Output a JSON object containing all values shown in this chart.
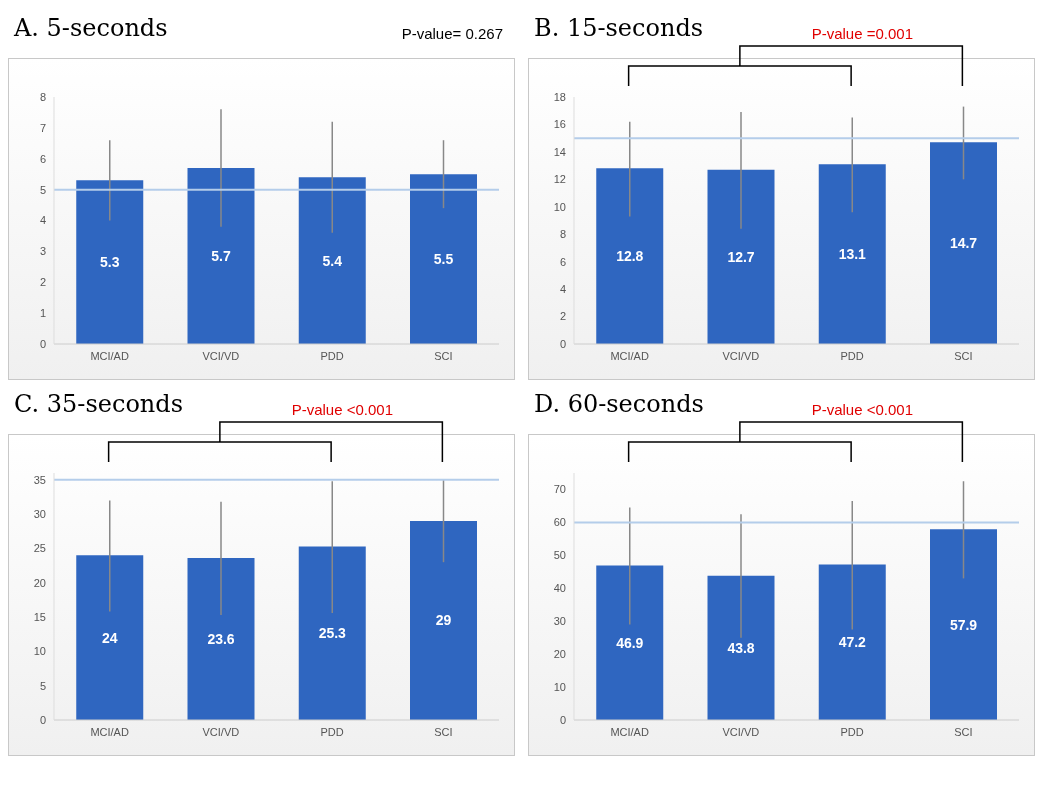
{
  "chart_data": [
    {
      "type": "bar",
      "title": "A. 5-seconds",
      "annotations": [
        "P-value= 0.267"
      ],
      "categories": [
        "MCI/AD",
        "VCI/VD",
        "PDD",
        "SCI"
      ],
      "values": [
        5.3,
        5.7,
        5.4,
        5.5
      ],
      "color": "#2f66c0",
      "data_labels": true,
      "errors": [
        [
          4.0,
          6.6
        ],
        [
          3.8,
          7.6
        ],
        [
          3.6,
          7.2
        ],
        [
          4.4,
          6.6
        ]
      ],
      "ylim": [
        0,
        8
      ],
      "yticks": [
        0,
        1,
        2,
        3,
        4,
        5,
        6,
        7,
        8
      ],
      "ref_lines": [
        {
          "axis": "y",
          "value": 5,
          "color": "#b4cdea"
        }
      ],
      "grid": false
    },
    {
      "type": "bar",
      "title": "B. 15-seconds",
      "annotations": [
        "P-value =0.001"
      ],
      "categories": [
        "MCI/AD",
        "VCI/VD",
        "PDD",
        "SCI"
      ],
      "values": [
        12.8,
        12.7,
        13.1,
        14.7
      ],
      "color": "#2f66c0",
      "data_labels": true,
      "errors": [
        [
          9.3,
          16.2
        ],
        [
          8.4,
          16.9
        ],
        [
          9.6,
          16.5
        ],
        [
          12.0,
          17.3
        ]
      ],
      "ylim": [
        0,
        18
      ],
      "yticks": [
        0,
        2,
        4,
        6,
        8,
        10,
        12,
        14,
        16,
        18
      ],
      "ref_lines": [
        {
          "axis": "y",
          "value": 15,
          "color": "#b4cdea"
        }
      ],
      "grid": false
    },
    {
      "type": "bar",
      "title": "C. 35-seconds",
      "annotations": [
        "P-value <0.001"
      ],
      "categories": [
        "MCI/AD",
        "VCI/VD",
        "PDD",
        "SCI"
      ],
      "values": [
        24,
        23.6,
        25.3,
        29
      ],
      "color": "#2f66c0",
      "data_labels": true,
      "errors": [
        [
          15.8,
          32
        ],
        [
          15.3,
          31.8
        ],
        [
          15.6,
          34.8
        ],
        [
          23,
          35
        ]
      ],
      "ylim": [
        0,
        36
      ],
      "yticks": [
        0,
        5,
        10,
        15,
        20,
        25,
        30,
        35
      ],
      "ref_lines": [
        {
          "axis": "y",
          "value": 35,
          "color": "#b4cdea"
        }
      ],
      "grid": false
    },
    {
      "type": "bar",
      "title": "D. 60-seconds",
      "annotations": [
        "P-value <0.001"
      ],
      "categories": [
        "MCI/AD",
        "VCI/VD",
        "PDD",
        "SCI"
      ],
      "values": [
        46.9,
        43.8,
        47.2,
        57.9
      ],
      "color": "#2f66c0",
      "data_labels": true,
      "errors": [
        [
          29,
          64.5
        ],
        [
          25,
          62.5
        ],
        [
          27.5,
          66.5
        ],
        [
          43,
          72.5
        ]
      ],
      "ylim": [
        0,
        75
      ],
      "yticks": [
        0,
        10,
        20,
        30,
        40,
        50,
        60,
        70
      ],
      "ref_lines": [
        {
          "axis": "y",
          "value": 60,
          "color": "#b4cdea"
        }
      ],
      "grid": false
    }
  ]
}
